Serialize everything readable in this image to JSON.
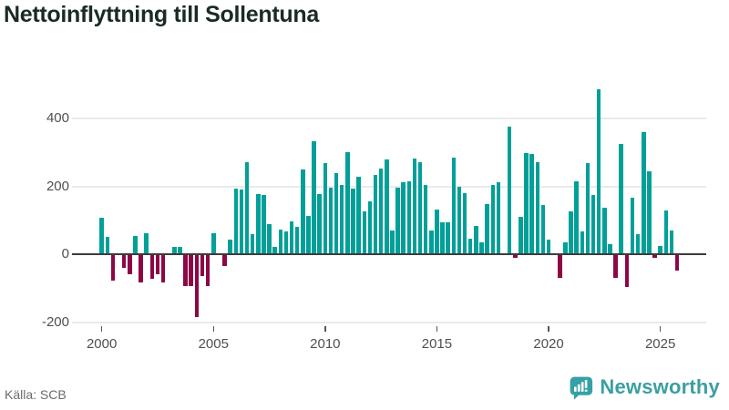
{
  "header": {
    "title": "Nettoinflyttning till Sollentuna"
  },
  "footer": {
    "source": "Källa: SCB",
    "brand": "Newsworthy"
  },
  "colors": {
    "positive_bar": "#00A098",
    "negative_bar": "#8D0745",
    "grid": "#EAEAEA",
    "zero_line": "#3D3D3D",
    "axis_text": "#4F4F4F",
    "title_text": "#1A2B24",
    "source_text": "#6B6B72",
    "brand_teal": "#3B9FA2",
    "logo_fill": "#35A1A6"
  },
  "chart_data": {
    "type": "bar",
    "title": "Nettoinflyttning till Sollentuna",
    "frequency": "quarterly",
    "period_start": "2000-Q1",
    "period_end": "2025-Q4",
    "grid": "horizontal",
    "legend": "none",
    "ylim": [
      -220,
      540
    ],
    "y_ticks": [
      400,
      200,
      0,
      -200
    ],
    "y_tick_labels": [
      "400",
      "200",
      "0",
      "-200"
    ],
    "x_ticks": [
      {
        "label": "2000",
        "bar_index": 0
      },
      {
        "label": "2005",
        "bar_index": 20
      },
      {
        "label": "2010",
        "bar_index": 40
      },
      {
        "label": "2015",
        "bar_index": 60
      },
      {
        "label": "2020",
        "bar_index": 80
      },
      {
        "label": "2025",
        "bar_index": 100
      }
    ],
    "values": [
      107,
      52,
      -78,
      0,
      -40,
      -60,
      55,
      -83,
      61,
      -72,
      -59,
      -83,
      0,
      21,
      21,
      -95,
      -95,
      -186,
      -64,
      -95,
      62,
      0,
      -35,
      42,
      194,
      191,
      270,
      60,
      178,
      174,
      89,
      21,
      73,
      66,
      96,
      80,
      250,
      114,
      333,
      178,
      268,
      196,
      239,
      205,
      301,
      194,
      227,
      127,
      156,
      234,
      252,
      279,
      71,
      196,
      212,
      214,
      281,
      272,
      205,
      69,
      132,
      93,
      95,
      284,
      200,
      181,
      45,
      82,
      35,
      148,
      205,
      212,
      0,
      375,
      -12,
      109,
      297,
      294,
      270,
      145,
      42,
      0,
      -70,
      36,
      125,
      215,
      67,
      268,
      174,
      485,
      138,
      29,
      -70,
      324,
      -97,
      166,
      60,
      360,
      243,
      -12,
      24,
      129,
      71,
      -49
    ]
  }
}
